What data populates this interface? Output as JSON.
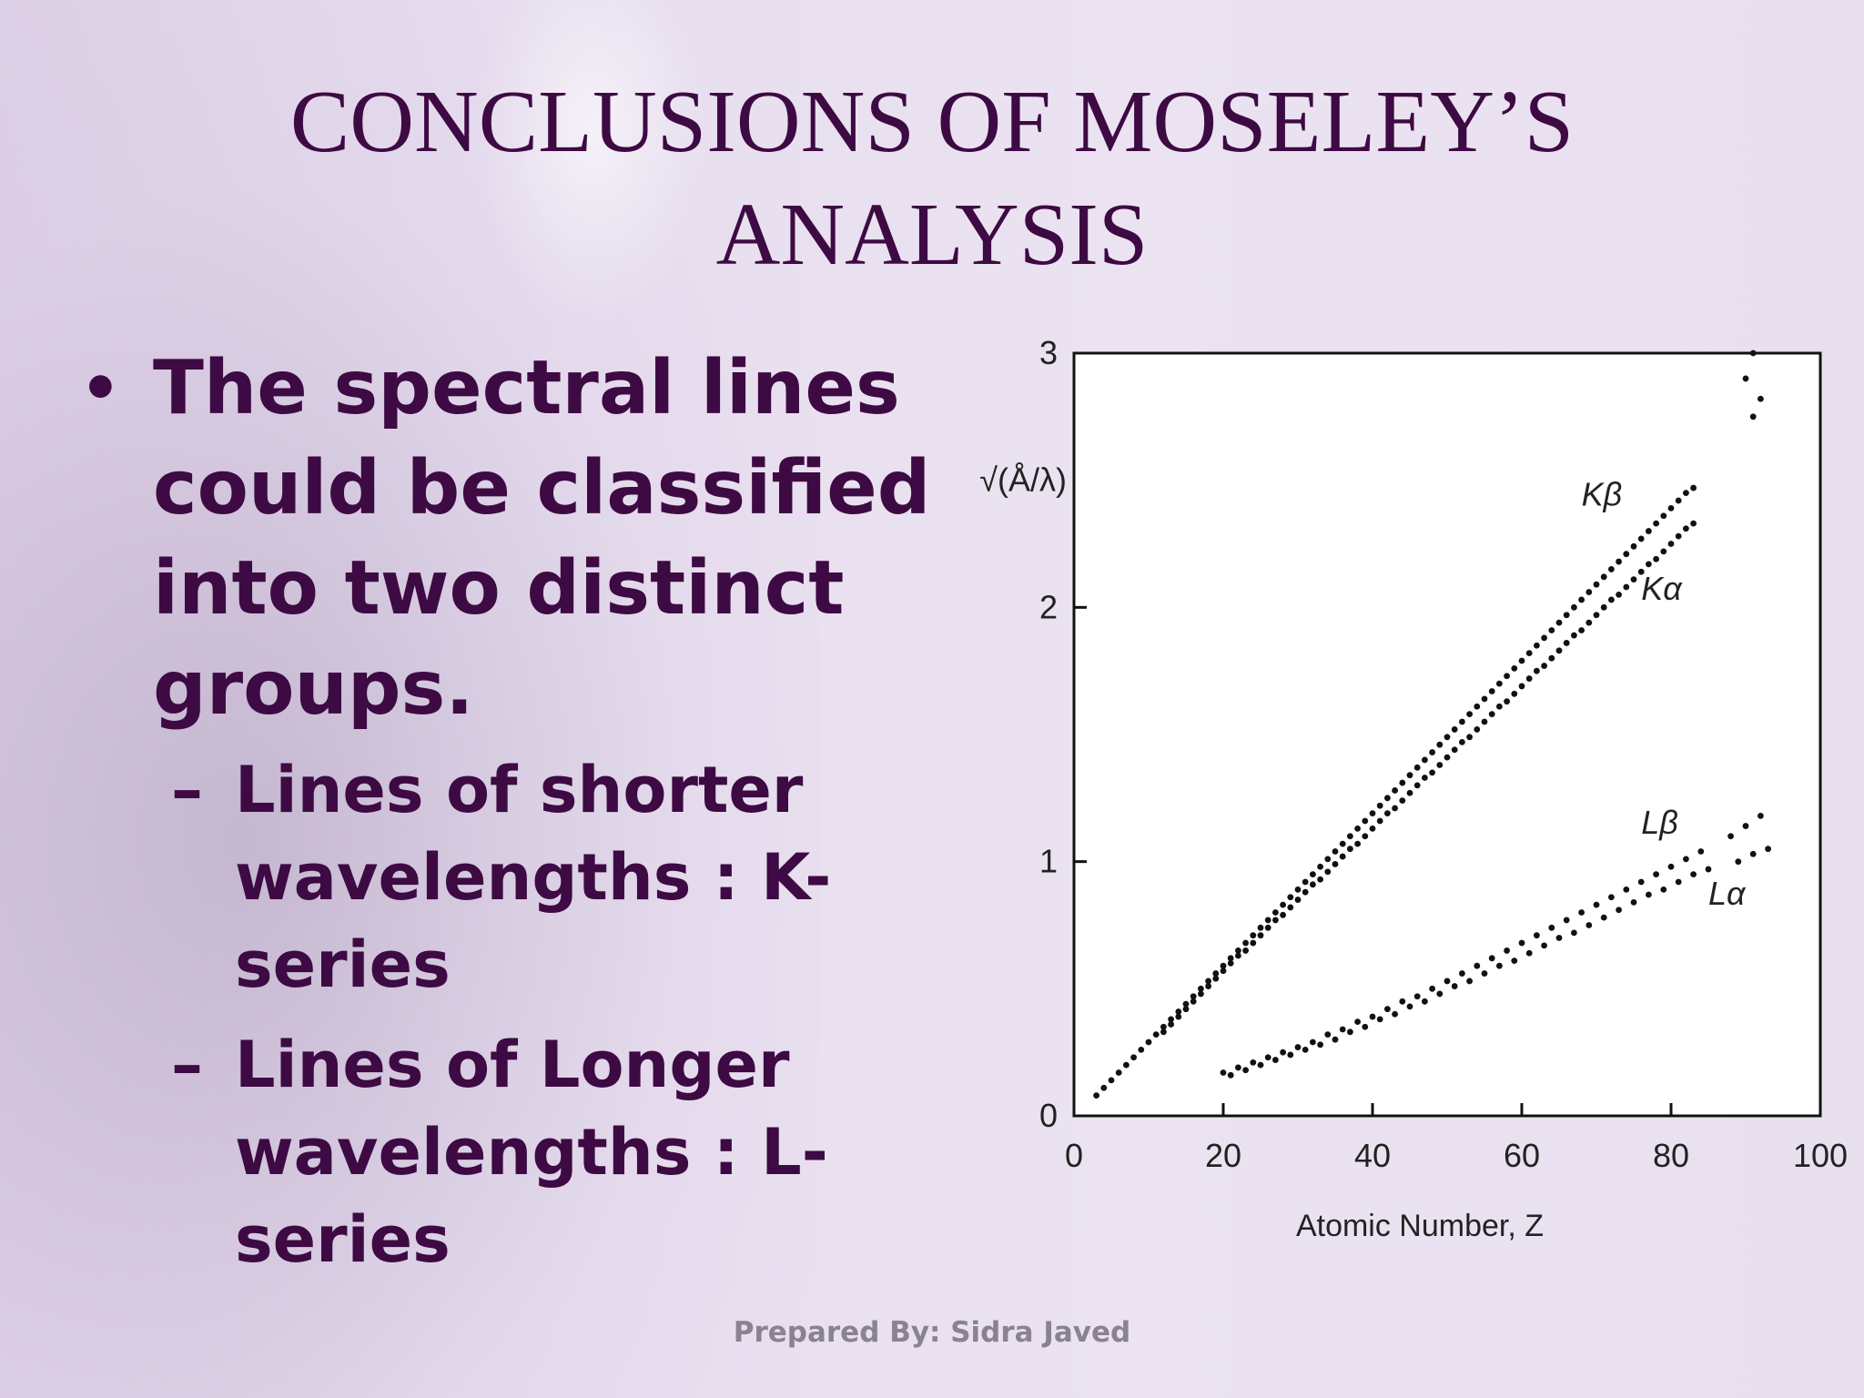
{
  "slide": {
    "title_line1": "CONCLUSIONS OF MOSELEY’S",
    "title_line2": "ANALYSIS",
    "bullet_main": "The spectral lines could be classified into two distinct groups.",
    "sub1": "Lines of shorter wavelengths : K-series",
    "sub2": "Lines of Longer wavelengths : L-series",
    "footer": "Prepared By: Sidra Javed",
    "colors": {
      "title": "#3e0a43",
      "footer": "#8a8290"
    }
  },
  "chart_data": {
    "type": "scatter",
    "title": "",
    "xlabel": "Atomic Number, Z",
    "ylabel": "√(Å/λ)",
    "xlim": [
      0,
      100
    ],
    "ylim": [
      0,
      3
    ],
    "xticks": [
      "0",
      "20",
      "40",
      "60",
      "80",
      "100"
    ],
    "yticks": [
      "0",
      "1",
      "2",
      "3"
    ],
    "grid": false,
    "series": [
      {
        "name": "Kβ",
        "label_at": [
          68,
          2.4
        ],
        "x": [
          3,
          4,
          5,
          6,
          7,
          8,
          9,
          10,
          11,
          12,
          13,
          14,
          15,
          16,
          17,
          18,
          19,
          20,
          21,
          22,
          23,
          24,
          25,
          26,
          27,
          28,
          29,
          30,
          31,
          32,
          33,
          34,
          35,
          36,
          37,
          38,
          39,
          40,
          41,
          42,
          43,
          44,
          45,
          46,
          47,
          48,
          49,
          50,
          51,
          52,
          53,
          54,
          55,
          56,
          57,
          58,
          59,
          60,
          61,
          62,
          63,
          64,
          65,
          66,
          67,
          68,
          69,
          70,
          71,
          72,
          73,
          74,
          75,
          76,
          77,
          78,
          79,
          80,
          81,
          82,
          83
        ],
        "y": [
          0.08,
          0.11,
          0.14,
          0.17,
          0.2,
          0.23,
          0.26,
          0.29,
          0.32,
          0.35,
          0.38,
          0.41,
          0.44,
          0.47,
          0.5,
          0.53,
          0.56,
          0.59,
          0.62,
          0.65,
          0.68,
          0.71,
          0.74,
          0.77,
          0.8,
          0.83,
          0.86,
          0.89,
          0.92,
          0.95,
          0.98,
          1.01,
          1.04,
          1.07,
          1.1,
          1.13,
          1.16,
          1.19,
          1.22,
          1.25,
          1.28,
          1.31,
          1.34,
          1.37,
          1.4,
          1.43,
          1.46,
          1.49,
          1.52,
          1.55,
          1.58,
          1.61,
          1.64,
          1.67,
          1.7,
          1.73,
          1.76,
          1.79,
          1.82,
          1.85,
          1.88,
          1.91,
          1.94,
          1.97,
          2,
          2.03,
          2.06,
          2.09,
          2.12,
          2.15,
          2.18,
          2.21,
          2.24,
          2.27,
          2.3,
          2.33,
          2.36,
          2.39,
          2.42,
          2.45,
          2.47
        ]
      },
      {
        "name": "Kα",
        "label_at": [
          76,
          2.03
        ],
        "x": [
          12,
          13,
          14,
          15,
          16,
          17,
          18,
          19,
          20,
          21,
          22,
          23,
          24,
          25,
          26,
          27,
          28,
          29,
          30,
          31,
          32,
          33,
          34,
          35,
          36,
          37,
          38,
          39,
          40,
          41,
          42,
          43,
          44,
          45,
          46,
          47,
          48,
          49,
          50,
          51,
          52,
          53,
          54,
          55,
          56,
          57,
          58,
          59,
          60,
          61,
          62,
          63,
          64,
          65,
          66,
          67,
          68,
          69,
          70,
          71,
          72,
          73,
          74,
          75,
          76,
          77,
          78,
          79,
          80,
          81,
          82,
          83
        ],
        "y": [
          0.33,
          0.36,
          0.39,
          0.42,
          0.45,
          0.48,
          0.51,
          0.54,
          0.57,
          0.6,
          0.63,
          0.65,
          0.68,
          0.71,
          0.74,
          0.77,
          0.79,
          0.82,
          0.85,
          0.88,
          0.91,
          0.93,
          0.96,
          0.99,
          1.02,
          1.05,
          1.07,
          1.1,
          1.13,
          1.16,
          1.19,
          1.21,
          1.24,
          1.27,
          1.3,
          1.33,
          1.35,
          1.38,
          1.41,
          1.44,
          1.47,
          1.49,
          1.52,
          1.55,
          1.58,
          1.61,
          1.63,
          1.66,
          1.69,
          1.72,
          1.75,
          1.77,
          1.8,
          1.83,
          1.86,
          1.89,
          1.91,
          1.94,
          1.97,
          2,
          2.03,
          2.05,
          2.08,
          2.11,
          2.14,
          2.17,
          2.19,
          2.22,
          2.25,
          2.28,
          2.31,
          2.33
        ]
      },
      {
        "name": "",
        "x": [
          90,
          91,
          91,
          92
        ],
        "y": [
          2.9,
          2.75,
          3.0,
          2.82
        ]
      },
      {
        "name": "Lβ",
        "label_at": [
          76,
          1.11
        ],
        "x": [
          20,
          22,
          24,
          26,
          28,
          30,
          32,
          34,
          36,
          38,
          40,
          42,
          44,
          46,
          48,
          50,
          52,
          54,
          56,
          58,
          60,
          62,
          64,
          66,
          68,
          70,
          72,
          74,
          76,
          78,
          80,
          82,
          84,
          88,
          90,
          92
        ],
        "y": [
          0.17,
          0.19,
          0.21,
          0.23,
          0.25,
          0.27,
          0.29,
          0.32,
          0.34,
          0.37,
          0.39,
          0.42,
          0.45,
          0.47,
          0.5,
          0.53,
          0.56,
          0.59,
          0.62,
          0.65,
          0.68,
          0.71,
          0.74,
          0.77,
          0.8,
          0.83,
          0.86,
          0.89,
          0.92,
          0.95,
          0.98,
          1.01,
          1.04,
          1.1,
          1.14,
          1.18
        ]
      },
      {
        "name": "Lα",
        "label_at": [
          85,
          0.83
        ],
        "x": [
          21,
          23,
          25,
          27,
          29,
          31,
          33,
          35,
          37,
          39,
          41,
          43,
          45,
          47,
          49,
          51,
          53,
          55,
          57,
          59,
          61,
          63,
          65,
          67,
          69,
          71,
          73,
          75,
          77,
          79,
          81,
          83,
          85,
          89,
          91,
          93
        ],
        "y": [
          0.16,
          0.18,
          0.2,
          0.22,
          0.24,
          0.26,
          0.28,
          0.3,
          0.33,
          0.35,
          0.38,
          0.4,
          0.43,
          0.45,
          0.48,
          0.51,
          0.53,
          0.56,
          0.59,
          0.61,
          0.64,
          0.67,
          0.7,
          0.72,
          0.75,
          0.78,
          0.81,
          0.84,
          0.87,
          0.89,
          0.92,
          0.95,
          0.97,
          1.0,
          1.03,
          1.05
        ]
      }
    ]
  }
}
